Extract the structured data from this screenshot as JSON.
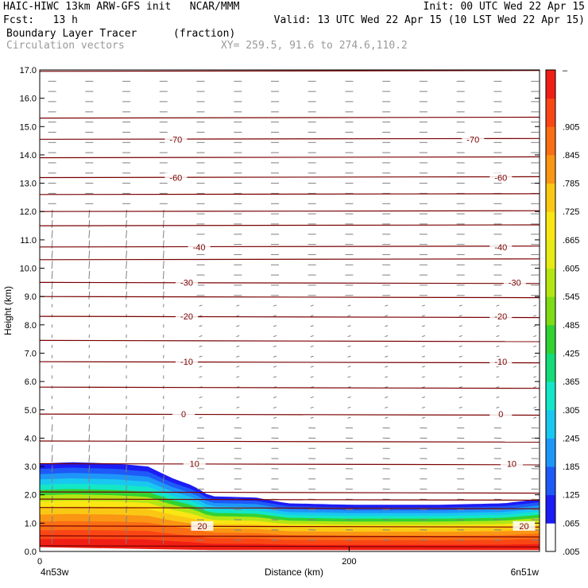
{
  "header": {
    "title_left": "HAIC-HIWC 13km ARW-GFS init   NCAR/MMM",
    "init": "Init: 00 UTC Wed 22 Apr 15",
    "fcst": "Fcst:   13 h",
    "valid": "Valid: 13 UTC Wed 22 Apr 15 (10 LST Wed 22 Apr 15)",
    "field": "Boundary Layer Tracer",
    "field_units": "(fraction)",
    "vector_label": "Circulation vectors",
    "xy_label": "XY= 259.5, 91.6 to 274.6,110.2"
  },
  "colors": {
    "contour": "#7a0000",
    "vector": "#808080",
    "colorbar": [
      "#ffffff",
      "#1c1cf5",
      "#1e5af7",
      "#1e96f9",
      "#19c8f0",
      "#14e6c8",
      "#14dc78",
      "#32d232",
      "#7ddc14",
      "#b4e614",
      "#e6eb14",
      "#fae614",
      "#fac814",
      "#fa9614",
      "#fa6e14",
      "#fa4614",
      "#f01e14"
    ]
  },
  "chart_data": {
    "type": "heatmap",
    "title": "Boundary Layer Tracer",
    "units": "(fraction)",
    "ylabel": "Height (km)",
    "xlabel": "Distance (km)",
    "x_left_label": "4n53w",
    "x_right_label": "6n51w",
    "ylim": [
      0,
      17
    ],
    "xlim": [
      0,
      323
    ],
    "y_ticks": [
      "0.0",
      "1.0",
      "2.0",
      "3.0",
      "4.0",
      "5.0",
      "6.0",
      "7.0",
      "8.0",
      "9.0",
      "10.0",
      "11.0",
      "12.0",
      "13.0",
      "14.0",
      "15.0",
      "16.0",
      "17.0"
    ],
    "x_ticks": [
      {
        "value": 0,
        "label": "0"
      },
      {
        "value": 200,
        "label": "200"
      }
    ],
    "colorbar_labels": [
      "–",
      "",
      ".905",
      ".845",
      ".785",
      ".725",
      ".665",
      ".605",
      ".545",
      ".485",
      ".425",
      ".365",
      ".305",
      ".245",
      ".185",
      ".125",
      ".065",
      ".005"
    ],
    "tracer_top_km": [
      {
        "x": 0,
        "top": 3.1
      },
      {
        "x": 20,
        "top": 3.15
      },
      {
        "x": 50,
        "top": 3.1
      },
      {
        "x": 70,
        "top": 3.0
      },
      {
        "x": 85,
        "top": 2.6
      },
      {
        "x": 100,
        "top": 2.3
      },
      {
        "x": 110,
        "top": 1.95
      },
      {
        "x": 140,
        "top": 1.9
      },
      {
        "x": 160,
        "top": 1.7
      },
      {
        "x": 200,
        "top": 1.65
      },
      {
        "x": 260,
        "top": 1.65
      },
      {
        "x": 300,
        "top": 1.7
      },
      {
        "x": 323,
        "top": 1.85
      }
    ],
    "contour_labels": [
      {
        "x": 88,
        "y": 14.55,
        "label": "-70"
      },
      {
        "x": 280,
        "y": 14.55,
        "label": "-70"
      },
      {
        "x": 88,
        "y": 13.2,
        "label": "-60"
      },
      {
        "x": 298,
        "y": 13.2,
        "label": "-60"
      },
      {
        "x": 103,
        "y": 10.75,
        "label": "-40"
      },
      {
        "x": 298,
        "y": 10.75,
        "label": "-40"
      },
      {
        "x": 95,
        "y": 9.5,
        "label": "-30"
      },
      {
        "x": 307,
        "y": 9.5,
        "label": "-30"
      },
      {
        "x": 95,
        "y": 8.3,
        "label": "-20"
      },
      {
        "x": 298,
        "y": 8.3,
        "label": "-20"
      },
      {
        "x": 95,
        "y": 6.7,
        "label": "-10"
      },
      {
        "x": 298,
        "y": 6.7,
        "label": "-10"
      },
      {
        "x": 93,
        "y": 4.85,
        "label": "0"
      },
      {
        "x": 298,
        "y": 4.85,
        "label": "0"
      },
      {
        "x": 100,
        "y": 3.1,
        "label": "10"
      },
      {
        "x": 305,
        "y": 3.1,
        "label": "10"
      },
      {
        "x": 105,
        "y": 0.9,
        "label": "20"
      },
      {
        "x": 313,
        "y": 0.9,
        "label": "20"
      }
    ],
    "contour_levels_km": [
      0.2,
      0.55,
      0.9,
      1.55,
      1.85,
      2.1,
      3.1,
      3.9,
      4.85,
      5.8,
      6.7,
      7.45,
      8.3,
      9.0,
      9.5,
      10.3,
      10.75,
      11.5,
      12.0,
      12.6,
      13.2,
      13.9,
      14.55,
      15.3,
      16.95
    ]
  }
}
